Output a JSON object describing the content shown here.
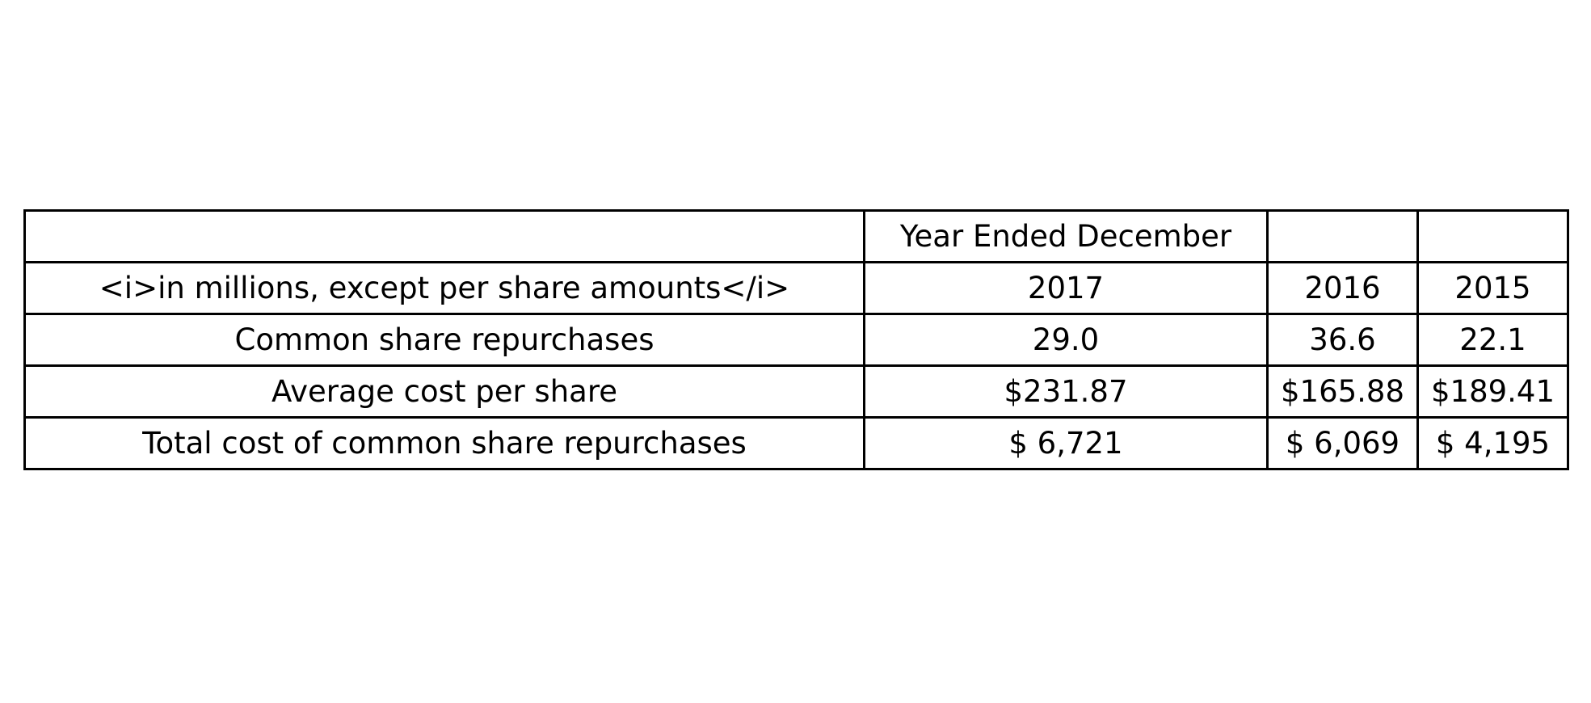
{
  "chart_data": {
    "type": "table",
    "columns": [
      "",
      "Year Ended December",
      "",
      ""
    ],
    "rows": [
      [
        "<i>in millions, except per share amounts</i>",
        "2017",
        "2016",
        "2015"
      ],
      [
        "Common share repurchases",
        "29.0",
        "36.6",
        "22.1"
      ],
      [
        "Average cost per share",
        "$231.87",
        "$165.88",
        "$189.41"
      ],
      [
        "Total cost of common share repurchases",
        "$ 6,721",
        "$ 6,069",
        "$ 4,195"
      ]
    ]
  }
}
